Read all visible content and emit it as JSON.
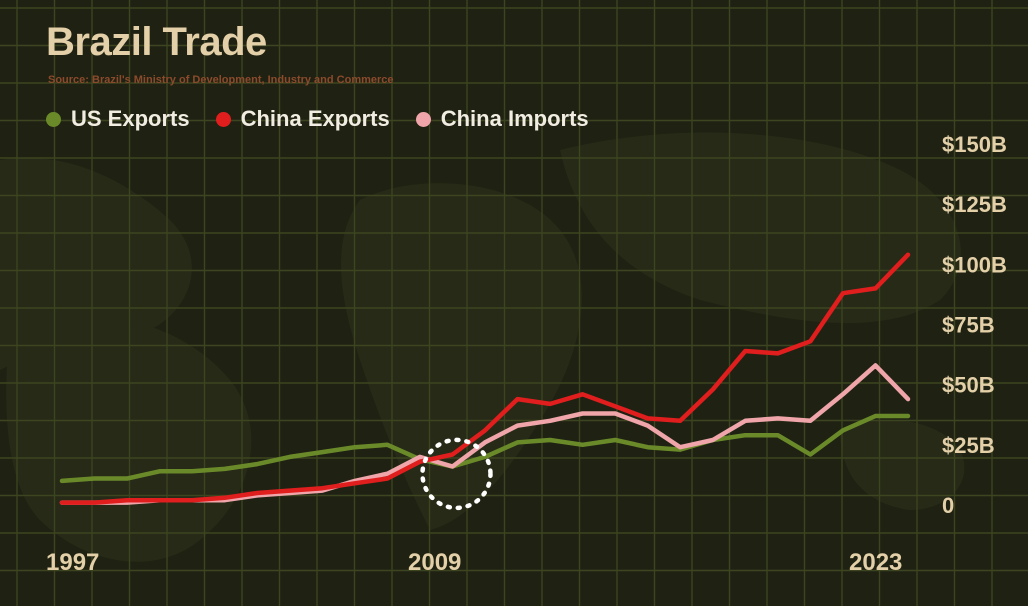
{
  "header": {
    "title": "Brazil Trade",
    "source": "Source: Brazil's Ministry of Development, Industry and Commerce"
  },
  "colors": {
    "background": "#1f2212",
    "grid": "#3c4420",
    "title": "#e3cfa8",
    "source": "#8c4a2c",
    "axis_text": "#e3cfa8",
    "us_exports": "#6a8a2a",
    "china_exports": "#e01e1e",
    "china_imports": "#efa5aa",
    "highlight_ring": "#ffffff"
  },
  "chart_data": {
    "type": "line",
    "title": "Brazil Trade",
    "subtitle": "Source: Brazil's Ministry of Development, Industry and Commerce",
    "x": [
      1997,
      1998,
      1999,
      2000,
      2001,
      2002,
      2003,
      2004,
      2005,
      2006,
      2007,
      2008,
      2009,
      2010,
      2011,
      2012,
      2013,
      2014,
      2015,
      2016,
      2017,
      2018,
      2019,
      2020,
      2021,
      2022,
      2023
    ],
    "x_tick_labels": [
      "1997",
      "2009",
      "2023"
    ],
    "y_tick_labels": [
      "0",
      "$25B",
      "$50B",
      "$75B",
      "$100B",
      "$125B",
      "$150B"
    ],
    "y_ticks": [
      0,
      25,
      50,
      75,
      100,
      125,
      150
    ],
    "ylim": [
      0,
      150
    ],
    "xlabel": "",
    "ylabel": "",
    "grid": true,
    "legend_position": "top-left",
    "y_axis_position": "right",
    "series": [
      {
        "name": "US Exports",
        "color": "#6a8a2a",
        "values": [
          10,
          11,
          11,
          14,
          14,
          15,
          17,
          20,
          22,
          24,
          25,
          19,
          16,
          20,
          26,
          27,
          25,
          27,
          24,
          23,
          27,
          29,
          29,
          21,
          31,
          37,
          37
        ]
      },
      {
        "name": "China Exports",
        "color": "#e01e1e",
        "values": [
          1,
          1,
          2,
          2,
          2,
          3,
          5,
          6,
          7,
          9,
          11,
          18,
          21,
          31,
          44,
          42,
          46,
          41,
          36,
          35,
          48,
          64,
          63,
          68,
          88,
          90,
          104
        ]
      },
      {
        "name": "China Imports",
        "color": "#efa5aa",
        "values": [
          1,
          1,
          1,
          2,
          2,
          2,
          4,
          5,
          6,
          10,
          13,
          20,
          16,
          26,
          33,
          35,
          38,
          38,
          33,
          24,
          27,
          35,
          36,
          35,
          46,
          58,
          44
        ]
      }
    ],
    "annotations": [
      {
        "type": "dotted-circle",
        "x": 2009,
        "y": 15
      }
    ]
  }
}
